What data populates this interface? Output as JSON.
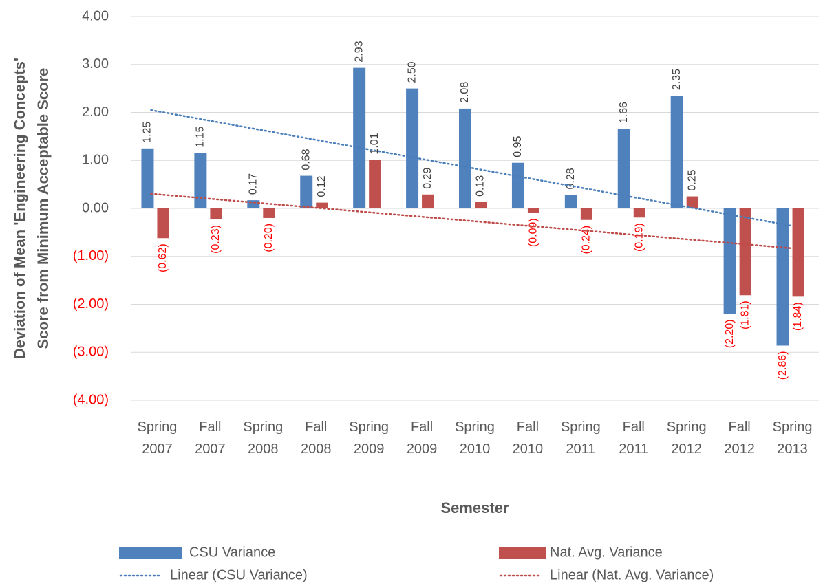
{
  "chart_data": {
    "type": "bar",
    "xlabel": "Semester",
    "ylabel": [
      "Deviation of Mean 'Engineering Concepts'",
      "Score from Minimum Acceptable Score"
    ],
    "categories": [
      "Spring 2007",
      "Fall 2007",
      "Spring 2008",
      "Fall 2008",
      "Spring 2009",
      "Fall 2009",
      "Spring 2010",
      "Fall 2010",
      "Spring 2011",
      "Fall 2011",
      "Spring 2012",
      "Fall 2012",
      "Spring 2013"
    ],
    "series": [
      {
        "name": "CSU Variance",
        "color": "#4f81bd",
        "values": [
          1.25,
          1.15,
          0.17,
          0.68,
          2.93,
          2.5,
          2.08,
          0.95,
          0.28,
          1.66,
          2.35,
          -2.2,
          -2.86
        ],
        "value_labels": [
          "1.25",
          "1.15",
          "0.17",
          "0.68",
          "2.93",
          "2.50",
          "2.08",
          "0.95",
          "0.28",
          "1.66",
          "2.35",
          "(2.20)",
          "(2.86)"
        ]
      },
      {
        "name": "Nat. Avg. Variance",
        "color": "#c0504d",
        "values": [
          -0.62,
          -0.23,
          -0.2,
          0.12,
          1.01,
          0.29,
          0.13,
          -0.09,
          -0.24,
          -0.19,
          0.25,
          -1.81,
          -1.84
        ],
        "value_labels": [
          "(0.62)",
          "(0.23)",
          "(0.20)",
          "0.12",
          "1.01",
          "0.29",
          "0.13",
          "(0.09)",
          "(0.24)",
          "(0.19)",
          "0.25",
          "(1.81)",
          "(1.84)"
        ]
      }
    ],
    "trendlines": [
      {
        "name": "Linear (CSU Variance)",
        "series": 0,
        "color": "#4a7ebb"
      },
      {
        "name": "Linear (Nat. Avg. Variance)",
        "series": 1,
        "color": "#be4b48"
      }
    ],
    "ylim": [
      -4,
      4
    ],
    "yticks": [
      {
        "value": -4,
        "label": "(4.00)"
      },
      {
        "value": -3,
        "label": "(3.00)"
      },
      {
        "value": -2,
        "label": "(2.00)"
      },
      {
        "value": -1,
        "label": "(1.00)"
      },
      {
        "value": 0,
        "label": "0.00"
      },
      {
        "value": 1,
        "label": "1.00"
      },
      {
        "value": 2,
        "label": "2.00"
      },
      {
        "value": 3,
        "label": "3.00"
      },
      {
        "value": 4,
        "label": "4.00"
      }
    ],
    "grid": true,
    "negative_label_color": "#ff0000",
    "legend": "bottom"
  }
}
